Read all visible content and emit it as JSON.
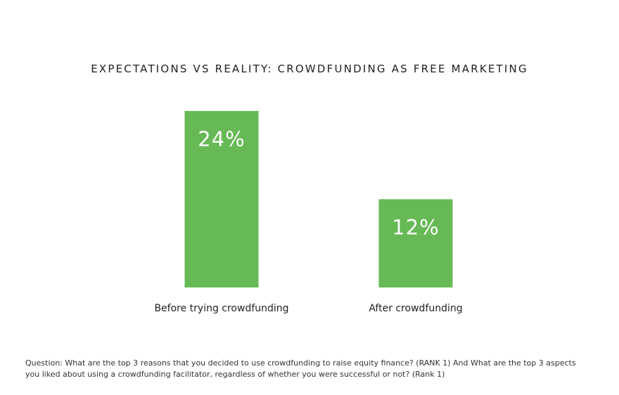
{
  "chart_data": {
    "type": "bar",
    "title": "EXPECTATIONS VS REALITY: CROWDFUNDING AS FREE MARKETING",
    "categories": [
      "Before trying crowdfunding",
      "After crowdfunding"
    ],
    "values": [
      24,
      12
    ],
    "data_labels": [
      "24%",
      "12%"
    ],
    "unit": "%",
    "ylim": [
      0,
      26
    ],
    "grid": false,
    "legend": "none",
    "bar_color": "#66b955",
    "label_color": "#ffffff"
  },
  "footnote": {
    "line1": "Question: What are the top 3 reasons that you decided to use crowdfunding to raise equity finance? (RANK 1) And What are the top 3 aspects",
    "line2": "you liked about using a crowdfunding facilitator, regardless of whether you were successful or not? (Rank 1)"
  }
}
